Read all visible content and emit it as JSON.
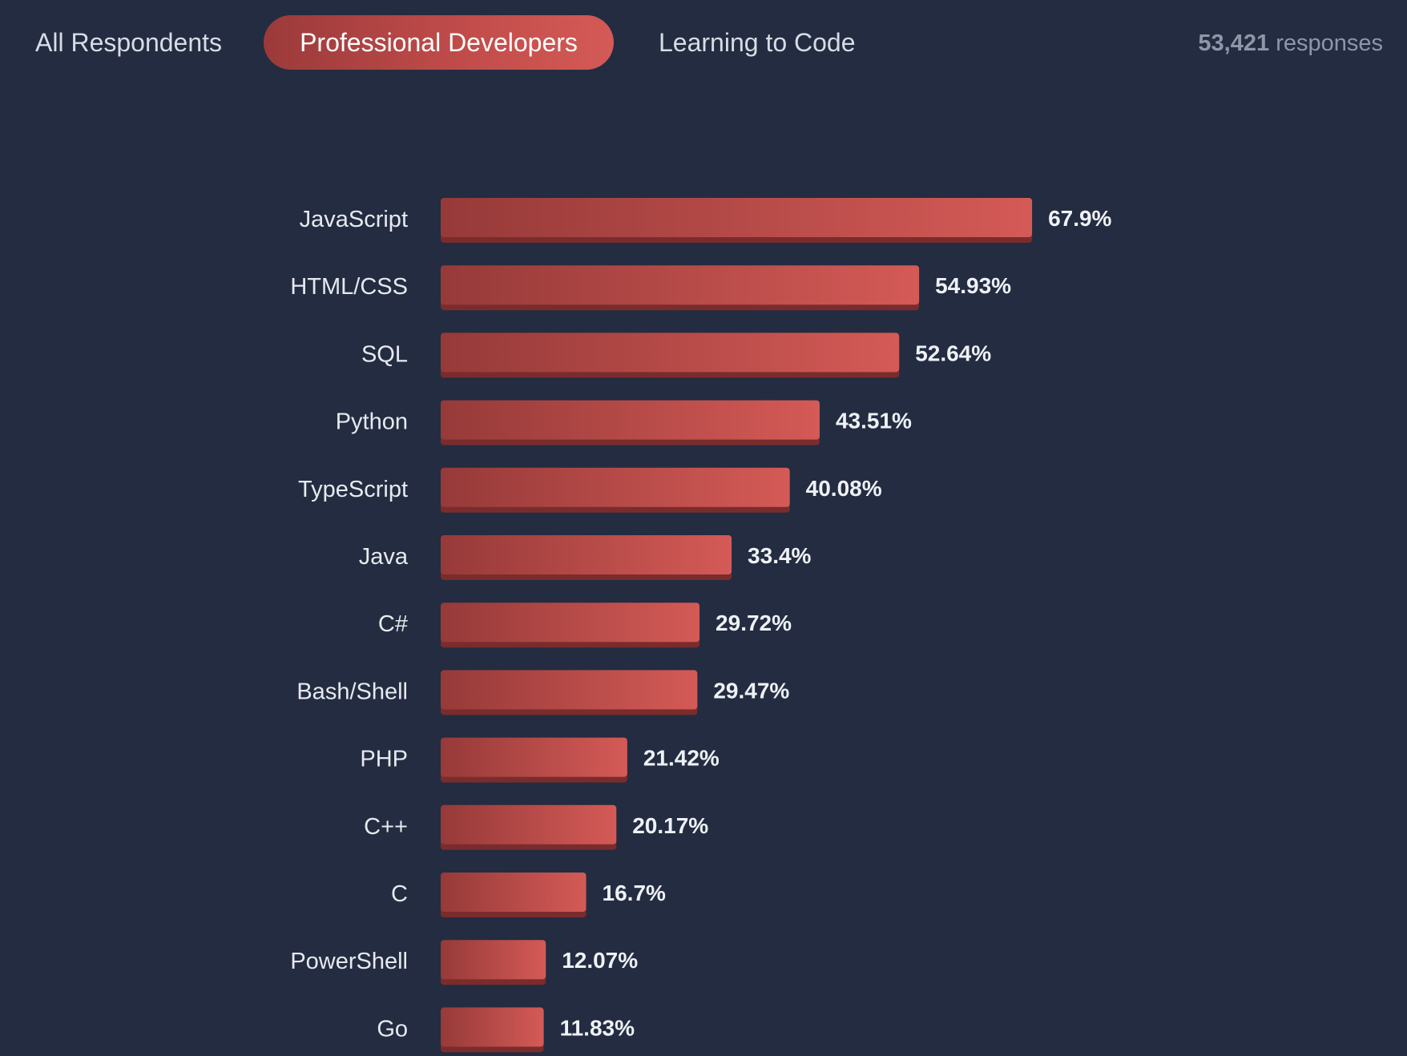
{
  "tabs": [
    {
      "label": "All Respondents",
      "active": false
    },
    {
      "label": "Professional Developers",
      "active": true
    },
    {
      "label": "Learning to Code",
      "active": false
    }
  ],
  "responses": {
    "count": "53,421",
    "label": "responses"
  },
  "colors": {
    "background": "#232c40",
    "bar_start": "#9b3a3a",
    "bar_end": "#d45a56",
    "bar_shadow": "#7a2c2c"
  },
  "chart_data": {
    "type": "bar",
    "orientation": "horizontal",
    "categories": [
      "JavaScript",
      "HTML/CSS",
      "SQL",
      "Python",
      "TypeScript",
      "Java",
      "C#",
      "Bash/Shell",
      "PHP",
      "C++",
      "C",
      "PowerShell",
      "Go"
    ],
    "values": [
      67.9,
      54.93,
      52.64,
      43.51,
      40.08,
      33.4,
      29.72,
      29.47,
      21.42,
      20.17,
      16.7,
      12.07,
      11.83
    ],
    "value_labels": [
      "67.9%",
      "54.93%",
      "52.64%",
      "43.51%",
      "40.08%",
      "33.4%",
      "29.72%",
      "29.47%",
      "21.42%",
      "20.17%",
      "16.7%",
      "12.07%",
      "11.83%"
    ],
    "title": "",
    "xlabel": "",
    "ylabel": "",
    "grid": false,
    "legend": "none"
  }
}
